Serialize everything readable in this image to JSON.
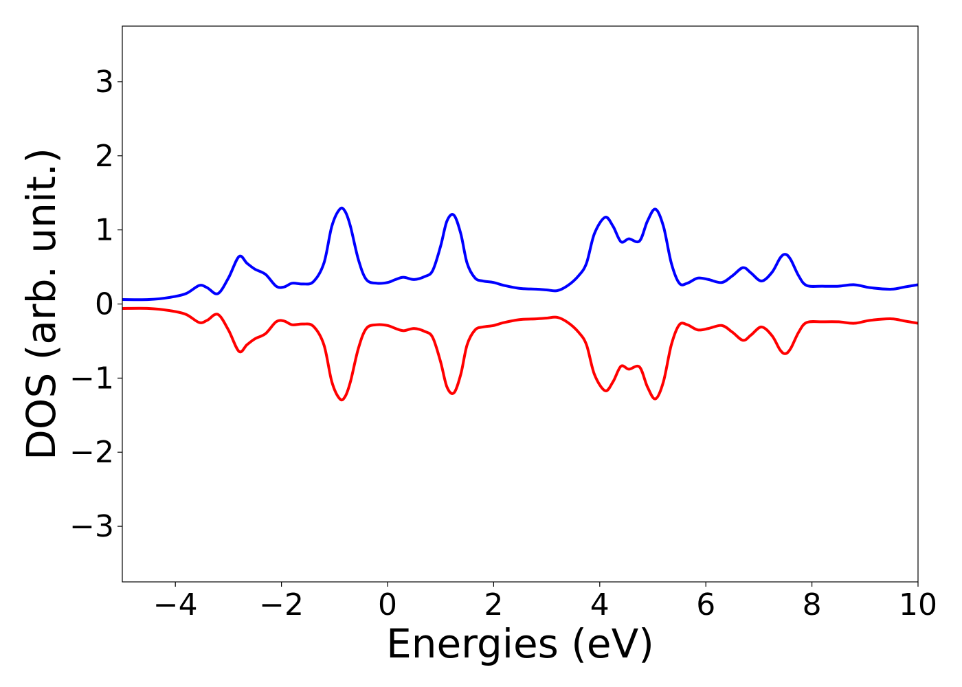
{
  "chart_data": {
    "type": "line",
    "title": "",
    "xlabel": "Energies (eV)",
    "ylabel": "DOS (arb. unit.)",
    "xlim": [
      -5,
      10
    ],
    "ylim": [
      -3.75,
      3.75
    ],
    "xticks": [
      -4,
      -2,
      0,
      2,
      4,
      6,
      8,
      10
    ],
    "yticks": [
      -3,
      -2,
      -1,
      0,
      1,
      2,
      3
    ],
    "xtick_labels": [
      "−4",
      "−2",
      "0",
      "2",
      "4",
      "6",
      "8",
      "10"
    ],
    "ytick_labels": [
      "−3",
      "−2",
      "−1",
      "0",
      "1",
      "2",
      "3"
    ],
    "grid": false,
    "legend": "none",
    "series": [
      {
        "color": "#0000ff",
        "x": [
          -5.0,
          -4.5,
          -4.1,
          -3.8,
          -3.55,
          -3.4,
          -3.2,
          -3.0,
          -2.8,
          -2.65,
          -2.5,
          -2.3,
          -2.1,
          -1.95,
          -1.8,
          -1.6,
          -1.4,
          -1.2,
          -1.05,
          -0.9,
          -0.8,
          -0.7,
          -0.55,
          -0.4,
          -0.2,
          0.0,
          0.15,
          0.3,
          0.5,
          0.7,
          0.85,
          1.0,
          1.12,
          1.25,
          1.38,
          1.5,
          1.65,
          1.8,
          2.0,
          2.2,
          2.5,
          2.8,
          3.0,
          3.2,
          3.4,
          3.6,
          3.75,
          3.9,
          4.1,
          4.25,
          4.4,
          4.55,
          4.75,
          4.9,
          5.05,
          5.2,
          5.35,
          5.5,
          5.65,
          5.85,
          6.05,
          6.3,
          6.5,
          6.7,
          6.85,
          7.05,
          7.25,
          7.4,
          7.5,
          7.6,
          7.75,
          7.9,
          8.2,
          8.5,
          8.8,
          9.1,
          9.5,
          9.75,
          10.0
        ],
        "y": [
          0.06,
          0.06,
          0.09,
          0.14,
          0.25,
          0.22,
          0.14,
          0.35,
          0.64,
          0.55,
          0.47,
          0.4,
          0.24,
          0.23,
          0.28,
          0.27,
          0.3,
          0.55,
          1.05,
          1.28,
          1.25,
          1.05,
          0.6,
          0.33,
          0.28,
          0.29,
          0.33,
          0.36,
          0.33,
          0.37,
          0.45,
          0.78,
          1.12,
          1.2,
          0.95,
          0.55,
          0.35,
          0.31,
          0.29,
          0.25,
          0.21,
          0.2,
          0.19,
          0.18,
          0.25,
          0.38,
          0.55,
          0.95,
          1.17,
          1.05,
          0.84,
          0.88,
          0.85,
          1.12,
          1.28,
          1.05,
          0.55,
          0.28,
          0.28,
          0.35,
          0.33,
          0.29,
          0.38,
          0.49,
          0.42,
          0.31,
          0.43,
          0.62,
          0.67,
          0.6,
          0.38,
          0.25,
          0.24,
          0.24,
          0.26,
          0.22,
          0.2,
          0.23,
          0.26
        ]
      },
      {
        "color": "#ff0000",
        "x": [
          -5.0,
          -4.5,
          -4.1,
          -3.8,
          -3.55,
          -3.4,
          -3.2,
          -3.0,
          -2.8,
          -2.65,
          -2.5,
          -2.3,
          -2.1,
          -1.95,
          -1.8,
          -1.6,
          -1.4,
          -1.2,
          -1.05,
          -0.9,
          -0.8,
          -0.7,
          -0.55,
          -0.4,
          -0.2,
          0.0,
          0.15,
          0.3,
          0.5,
          0.7,
          0.85,
          1.0,
          1.12,
          1.25,
          1.38,
          1.5,
          1.65,
          1.8,
          2.0,
          2.2,
          2.5,
          2.8,
          3.0,
          3.2,
          3.4,
          3.6,
          3.75,
          3.9,
          4.1,
          4.25,
          4.4,
          4.55,
          4.75,
          4.9,
          5.05,
          5.2,
          5.35,
          5.5,
          5.65,
          5.85,
          6.05,
          6.3,
          6.5,
          6.7,
          6.85,
          7.05,
          7.25,
          7.4,
          7.5,
          7.6,
          7.75,
          7.9,
          8.2,
          8.5,
          8.8,
          9.1,
          9.5,
          9.75,
          10.0
        ],
        "y": [
          -0.06,
          -0.06,
          -0.09,
          -0.14,
          -0.25,
          -0.22,
          -0.14,
          -0.35,
          -0.64,
          -0.55,
          -0.47,
          -0.4,
          -0.24,
          -0.23,
          -0.28,
          -0.27,
          -0.3,
          -0.55,
          -1.05,
          -1.28,
          -1.25,
          -1.05,
          -0.6,
          -0.33,
          -0.28,
          -0.29,
          -0.33,
          -0.36,
          -0.33,
          -0.37,
          -0.45,
          -0.78,
          -1.12,
          -1.2,
          -0.95,
          -0.55,
          -0.35,
          -0.31,
          -0.29,
          -0.25,
          -0.21,
          -0.2,
          -0.19,
          -0.18,
          -0.25,
          -0.38,
          -0.55,
          -0.95,
          -1.17,
          -1.05,
          -0.84,
          -0.88,
          -0.85,
          -1.12,
          -1.28,
          -1.05,
          -0.55,
          -0.28,
          -0.28,
          -0.35,
          -0.33,
          -0.29,
          -0.38,
          -0.49,
          -0.42,
          -0.31,
          -0.43,
          -0.62,
          -0.67,
          -0.6,
          -0.38,
          -0.25,
          -0.24,
          -0.24,
          -0.26,
          -0.22,
          -0.2,
          -0.23,
          -0.26
        ]
      }
    ]
  }
}
